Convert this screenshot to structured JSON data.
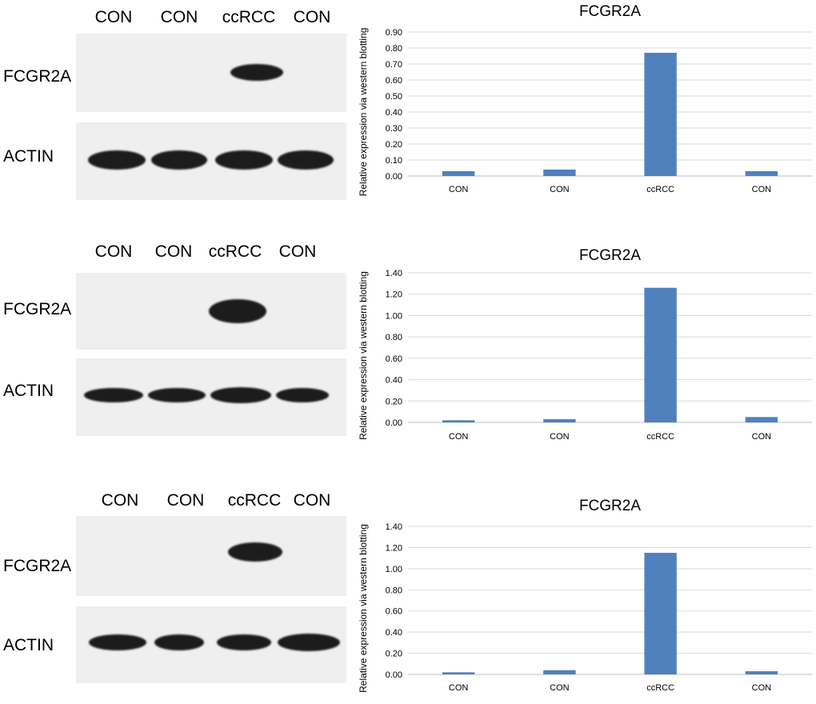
{
  "blots": [
    {
      "lanes": [
        "CON",
        "CON",
        "ccRCC",
        "CON"
      ],
      "protein_top": "FCGR2A",
      "protein_bottom": "ACTIN"
    },
    {
      "lanes": [
        "CON",
        "CON",
        "ccRCC",
        "CON"
      ],
      "protein_top": "FCGR2A",
      "protein_bottom": "ACTIN"
    },
    {
      "lanes": [
        "CON",
        "CON",
        "ccRCC",
        "CON"
      ],
      "protein_top": "FCGR2A",
      "protein_bottom": "ACTIN"
    }
  ],
  "chart_data": [
    {
      "type": "bar",
      "title": "FCGR2A",
      "ylabel": "Relative expression via western blotting",
      "categories": [
        "CON",
        "CON",
        "ccRCC",
        "CON"
      ],
      "values": [
        0.03,
        0.04,
        0.77,
        0.03
      ],
      "ylim": [
        0,
        0.9
      ],
      "ytick_step": 0.1,
      "ytick_labels": [
        "0.00",
        "0.10",
        "0.20",
        "0.30",
        "0.40",
        "0.50",
        "0.60",
        "0.70",
        "0.80",
        "0.90"
      ],
      "bar_color": "#4F81BD",
      "grid": true
    },
    {
      "type": "bar",
      "title": "FCGR2A",
      "ylabel": "Relative expression via western blotting",
      "categories": [
        "CON",
        "CON",
        "ccRCC",
        "CON"
      ],
      "values": [
        0.02,
        0.03,
        1.26,
        0.05
      ],
      "ylim": [
        0,
        1.4
      ],
      "ytick_step": 0.2,
      "ytick_labels": [
        "0.00",
        "0.20",
        "0.40",
        "0.60",
        "0.80",
        "1.00",
        "1.20",
        "1.40"
      ],
      "bar_color": "#4F81BD",
      "grid": true
    },
    {
      "type": "bar",
      "title": "FCGR2A",
      "ylabel": "Relative expression via western blotting",
      "categories": [
        "CON",
        "CON",
        "ccRCC",
        "CON"
      ],
      "values": [
        0.02,
        0.04,
        1.15,
        0.03
      ],
      "ylim": [
        0,
        1.4
      ],
      "ytick_step": 0.2,
      "ytick_labels": [
        "0.00",
        "0.20",
        "0.40",
        "0.60",
        "0.80",
        "1.00",
        "1.20",
        "1.40"
      ],
      "bar_color": "#4F81BD",
      "grid": true
    }
  ]
}
